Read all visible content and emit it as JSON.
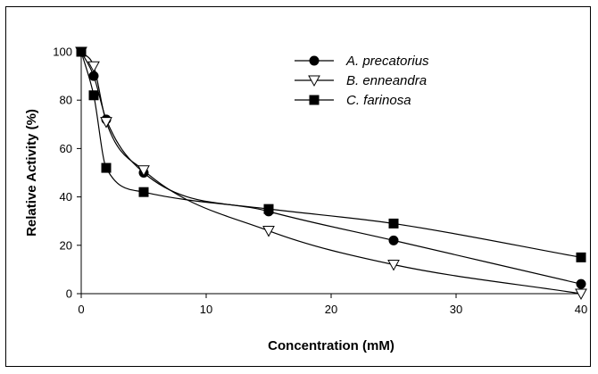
{
  "chart_data": {
    "type": "line",
    "title": "",
    "xlabel": "Concentration (mM)",
    "ylabel": "Relative Activity (%)",
    "xlim": [
      0,
      40
    ],
    "ylim": [
      0,
      100
    ],
    "xticks": [
      0,
      10,
      20,
      30,
      40
    ],
    "yticks": [
      0,
      20,
      40,
      60,
      80,
      100
    ],
    "grid": false,
    "legend_position": "top-center",
    "series": [
      {
        "name": "A. precatorius",
        "marker": "circle",
        "marker_fill": "#000000",
        "x": [
          0,
          1,
          2,
          5,
          15,
          25,
          40
        ],
        "y": [
          100,
          90,
          72,
          50,
          34,
          22,
          4
        ]
      },
      {
        "name": "B. enneandra",
        "marker": "triangle-down",
        "marker_fill": "#ffffff",
        "x": [
          0,
          1,
          2,
          5,
          15,
          25,
          40
        ],
        "y": [
          100,
          94,
          71,
          51,
          26,
          12,
          0
        ]
      },
      {
        "name": "C. farinosa",
        "marker": "square",
        "marker_fill": "#000000",
        "x": [
          0,
          1,
          2,
          5,
          15,
          25,
          40
        ],
        "y": [
          100,
          82,
          52,
          42,
          35,
          29,
          15
        ]
      }
    ],
    "colors": {
      "line": "#000000",
      "background": "#ffffff"
    }
  }
}
